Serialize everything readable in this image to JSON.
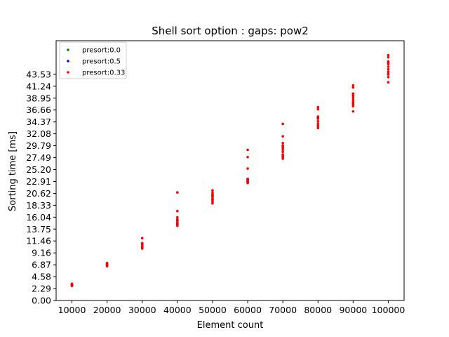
{
  "chart_data": {
    "type": "scatter",
    "title": "Shell sort option : gaps: pow2",
    "xlabel": "Element count",
    "ylabel": "Sorting time [ms]",
    "xlim": [
      5500,
      104500
    ],
    "ylim": [
      0,
      50
    ],
    "x_ticks": [
      10000,
      20000,
      30000,
      40000,
      50000,
      60000,
      70000,
      80000,
      90000,
      100000
    ],
    "x_tick_labels": [
      "10000",
      "20000",
      "30000",
      "40000",
      "50000",
      "60000",
      "70000",
      "80000",
      "90000",
      "100000"
    ],
    "y_ticks": [
      0.0,
      2.29,
      4.58,
      6.87,
      9.16,
      11.46,
      13.75,
      16.04,
      18.33,
      20.62,
      22.91,
      25.2,
      27.49,
      29.79,
      32.08,
      34.37,
      36.66,
      38.95,
      41.24,
      43.53
    ],
    "y_tick_labels": [
      "0.00",
      "2.29",
      "4.58",
      "6.87",
      "9.16",
      "11.46",
      "13.75",
      "16.04",
      "18.33",
      "20.62",
      "22.91",
      "25.20",
      "27.49",
      "29.79",
      "32.08",
      "34.37",
      "36.66",
      "38.95",
      "41.24",
      "43.53"
    ],
    "legend_position": "top-left",
    "series": [
      {
        "name": "presort:0.0",
        "color": "#008000",
        "points": [
          [
            10000,
            2.9
          ],
          [
            10000,
            3.1
          ],
          [
            20000,
            6.7
          ],
          [
            20000,
            7.0
          ],
          [
            30000,
            10.2
          ],
          [
            30000,
            10.8
          ],
          [
            40000,
            14.6
          ],
          [
            40000,
            15.4
          ],
          [
            50000,
            19.0
          ],
          [
            50000,
            20.0
          ],
          [
            60000,
            22.7
          ],
          [
            60000,
            23.2
          ],
          [
            70000,
            27.6
          ],
          [
            70000,
            29.4
          ],
          [
            80000,
            33.6
          ],
          [
            80000,
            35.0
          ],
          [
            90000,
            37.6
          ],
          [
            90000,
            39.4
          ],
          [
            100000,
            43.6
          ],
          [
            100000,
            45.6
          ]
        ]
      },
      {
        "name": "presort:0.5",
        "color": "#0000ff",
        "points": [
          [
            10000,
            3.0
          ],
          [
            10000,
            3.2
          ],
          [
            20000,
            6.8
          ],
          [
            20000,
            7.1
          ],
          [
            30000,
            10.4
          ],
          [
            30000,
            11.0
          ],
          [
            40000,
            14.8
          ],
          [
            40000,
            15.6
          ],
          [
            50000,
            19.4
          ],
          [
            50000,
            20.3
          ],
          [
            60000,
            22.9
          ],
          [
            60000,
            23.4
          ],
          [
            70000,
            28.0
          ],
          [
            70000,
            29.8
          ],
          [
            80000,
            34.0
          ],
          [
            80000,
            35.2
          ],
          [
            90000,
            38.0
          ],
          [
            90000,
            39.8
          ],
          [
            100000,
            44.0
          ],
          [
            100000,
            45.8
          ]
        ]
      },
      {
        "name": "presort:0.33",
        "color": "#ff0000",
        "points": [
          [
            10000,
            2.8
          ],
          [
            10000,
            2.9
          ],
          [
            10000,
            3.0
          ],
          [
            10000,
            3.1
          ],
          [
            10000,
            3.2
          ],
          [
            20000,
            6.6
          ],
          [
            20000,
            6.75
          ],
          [
            20000,
            6.85
          ],
          [
            20000,
            6.95
          ],
          [
            20000,
            7.05
          ],
          [
            20000,
            7.2
          ],
          [
            30000,
            10.0
          ],
          [
            30000,
            10.15
          ],
          [
            30000,
            10.3
          ],
          [
            30000,
            10.45
          ],
          [
            30000,
            10.6
          ],
          [
            30000,
            10.75
          ],
          [
            30000,
            10.9
          ],
          [
            30000,
            11.0
          ],
          [
            30000,
            12.0
          ],
          [
            40000,
            14.4
          ],
          [
            40000,
            14.7
          ],
          [
            40000,
            15.0
          ],
          [
            40000,
            15.3
          ],
          [
            40000,
            15.6
          ],
          [
            40000,
            16.0
          ],
          [
            40000,
            17.2
          ],
          [
            40000,
            20.8
          ],
          [
            50000,
            18.7
          ],
          [
            50000,
            19.0
          ],
          [
            50000,
            19.3
          ],
          [
            50000,
            19.6
          ],
          [
            50000,
            19.9
          ],
          [
            50000,
            20.2
          ],
          [
            50000,
            20.5
          ],
          [
            50000,
            20.8
          ],
          [
            50000,
            21.2
          ],
          [
            60000,
            22.6
          ],
          [
            60000,
            22.8
          ],
          [
            60000,
            23.0
          ],
          [
            60000,
            23.2
          ],
          [
            60000,
            23.4
          ],
          [
            60000,
            25.4
          ],
          [
            60000,
            27.6
          ],
          [
            60000,
            29.0
          ],
          [
            70000,
            27.3
          ],
          [
            70000,
            27.7
          ],
          [
            70000,
            28.1
          ],
          [
            70000,
            28.6
          ],
          [
            70000,
            29.0
          ],
          [
            70000,
            29.4
          ],
          [
            70000,
            29.8
          ],
          [
            70000,
            30.3
          ],
          [
            70000,
            31.6
          ],
          [
            70000,
            34.0
          ],
          [
            80000,
            33.2
          ],
          [
            80000,
            33.6
          ],
          [
            80000,
            34.0
          ],
          [
            80000,
            34.5
          ],
          [
            80000,
            35.0
          ],
          [
            80000,
            35.4
          ],
          [
            80000,
            36.8
          ],
          [
            80000,
            37.2
          ],
          [
            90000,
            36.4
          ],
          [
            90000,
            37.4
          ],
          [
            90000,
            37.8
          ],
          [
            90000,
            38.2
          ],
          [
            90000,
            38.6
          ],
          [
            90000,
            39.0
          ],
          [
            90000,
            39.4
          ],
          [
            90000,
            39.8
          ],
          [
            90000,
            41.0
          ],
          [
            90000,
            41.4
          ],
          [
            100000,
            42.0
          ],
          [
            100000,
            43.0
          ],
          [
            100000,
            43.5
          ],
          [
            100000,
            44.0
          ],
          [
            100000,
            44.5
          ],
          [
            100000,
            45.0
          ],
          [
            100000,
            45.5
          ],
          [
            100000,
            46.0
          ],
          [
            100000,
            46.8
          ],
          [
            100000,
            47.2
          ]
        ]
      }
    ]
  }
}
